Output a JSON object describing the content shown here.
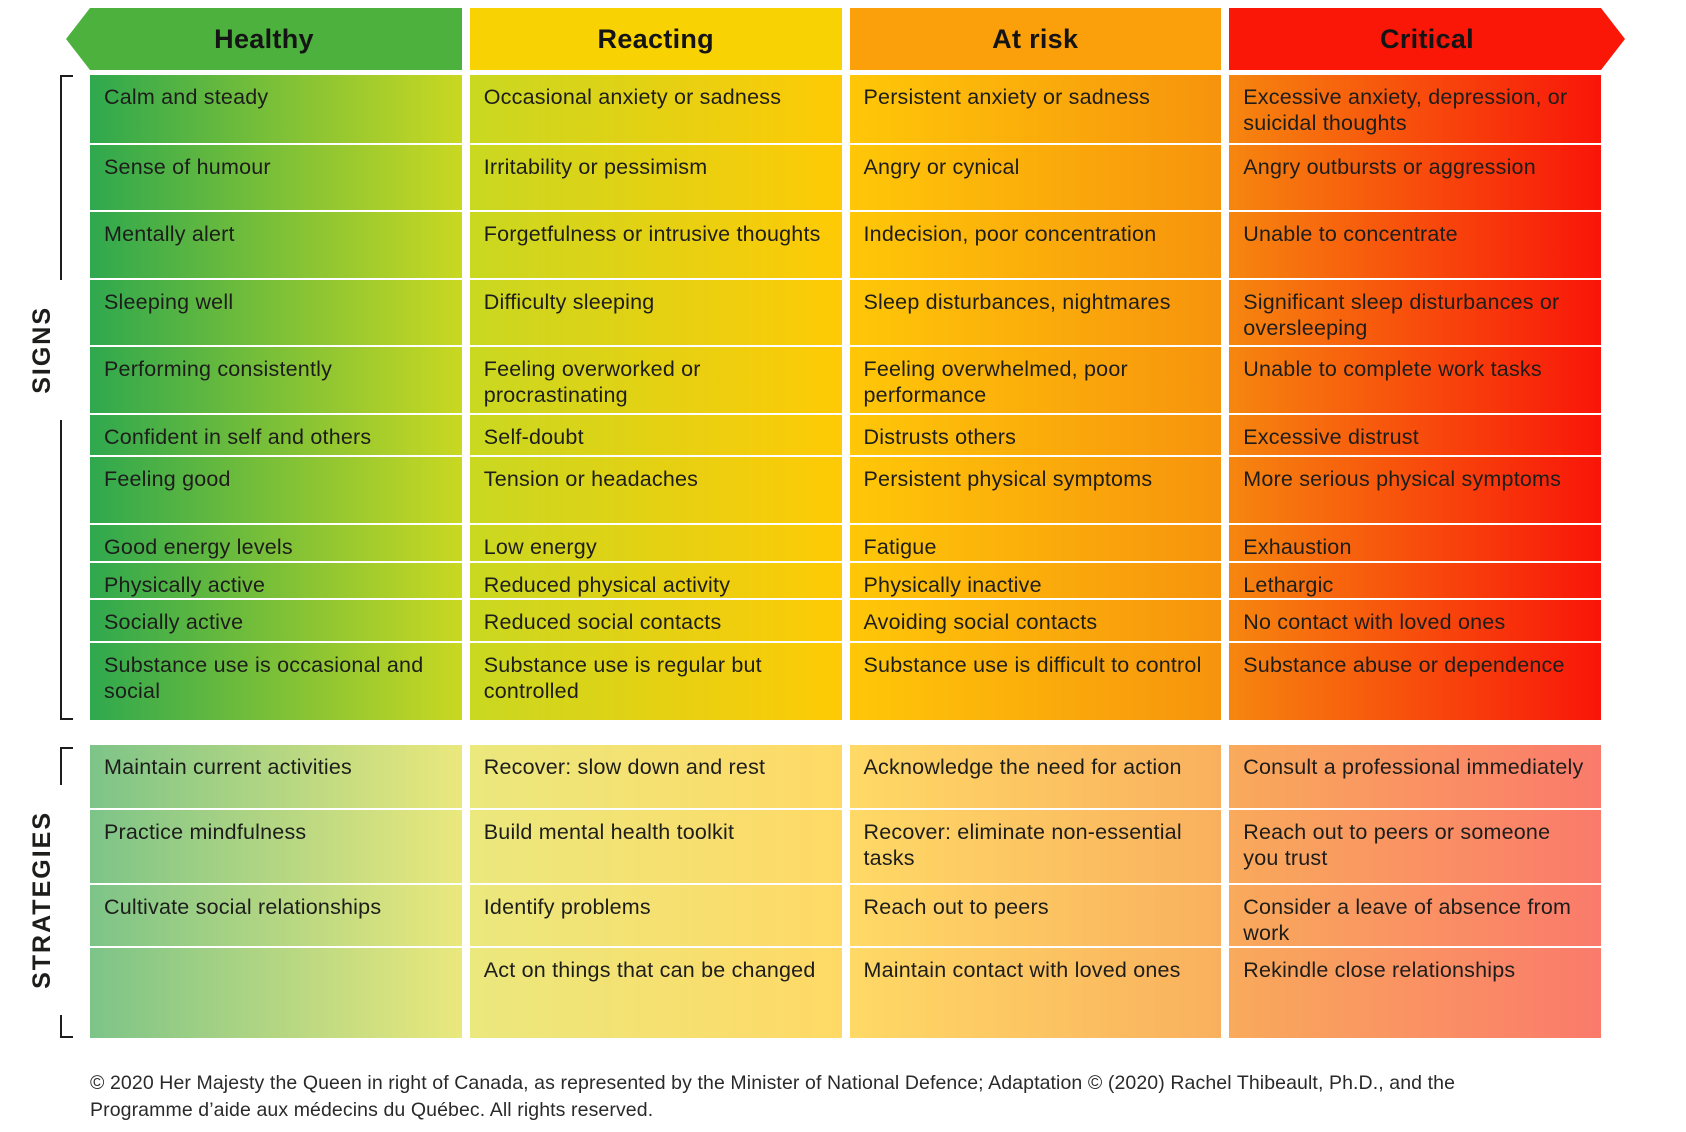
{
  "header": {
    "columns": [
      {
        "label": "Healthy"
      },
      {
        "label": "Reacting"
      },
      {
        "label": "At risk"
      },
      {
        "label": "Critical"
      }
    ]
  },
  "signs": {
    "label": "SIGNS",
    "columns": [
      {
        "name": "healthy",
        "rows": [
          "Calm and steady",
          "Sense of humour",
          "Mentally alert",
          "Sleeping well",
          "Performing consistently",
          "Confident in self and others",
          "Feeling good",
          "Good energy levels",
          "Physically active",
          "Socially active",
          "Substance use is occasional and social"
        ]
      },
      {
        "name": "reacting",
        "rows": [
          "Occasional anxiety or sadness",
          "Irritability or pessimism",
          "Forgetfulness or intrusive thoughts",
          "Difficulty sleeping",
          "Feeling overworked or procrastinating",
          "Self-doubt",
          "Tension or headaches",
          "Low energy",
          "Reduced physical activity",
          "Reduced social contacts",
          "Substance use is regular but controlled"
        ]
      },
      {
        "name": "at-risk",
        "rows": [
          "Persistent anxiety or sadness",
          "Angry or cynical",
          "Indecision, poor concentration",
          "Sleep disturbances, nightmares",
          "Feeling overwhelmed, poor performance",
          "Distrusts others",
          "Persistent physical symptoms",
          "Fatigue",
          "Physically inactive",
          "Avoiding social contacts",
          "Substance use is difficult to control"
        ]
      },
      {
        "name": "critical",
        "rows": [
          "Excessive anxiety, depression, or suicidal thoughts",
          "Angry outbursts or aggression",
          "Unable to concentrate",
          "Significant sleep disturbances or oversleeping",
          "Unable to complete work tasks",
          "Excessive distrust",
          "More serious physical symptoms",
          "Exhaustion",
          "Lethargic",
          "No contact with loved ones",
          "Substance abuse or dependence"
        ]
      }
    ]
  },
  "strategies": {
    "label": "STRATEGIES",
    "columns": [
      {
        "name": "healthy",
        "rows": [
          "Maintain current activities",
          "Practice mindfulness",
          "Cultivate social relationships",
          ""
        ]
      },
      {
        "name": "reacting",
        "rows": [
          "Recover: slow down and rest",
          "Build mental health toolkit",
          "Identify problems",
          "Act on things that can be changed"
        ]
      },
      {
        "name": "at-risk",
        "rows": [
          "Acknowledge the need for action",
          "Recover: eliminate non-essential tasks",
          "Reach out to peers",
          "Maintain contact with loved ones"
        ]
      },
      {
        "name": "critical",
        "rows": [
          "Consult a professional immediately",
          "Reach out to peers or someone you trust",
          "Consider a leave of absence from work",
          "Rekindle close relationships"
        ]
      }
    ]
  },
  "footer": {
    "copyright": "© 2020 Her Majesty the Queen in right of Canada, as represented by the Minister of National Defence; Adaptation © (2020) Rachel Thibeault, Ph.D., and the Programme d’aide aux médecins du Québec. All rights reserved."
  },
  "colors": {
    "header": {
      "healthy": "#4db13e",
      "reacting": "#f9d204",
      "at_risk": "#fba00b",
      "critical": "#fb1708"
    },
    "signs_gradients": {
      "healthy": [
        "#2fa84e",
        "#c9d821"
      ],
      "reacting": [
        "#c9d821",
        "#ffca05"
      ],
      "at_risk": [
        "#ffc708",
        "#f7930d"
      ],
      "critical": [
        "#f6860f",
        "#f91509"
      ]
    },
    "strategies_gradients": {
      "healthy": [
        "#7dc488",
        "#eae87d"
      ],
      "reacting": [
        "#ebe87d",
        "#ffd966"
      ],
      "at_risk": [
        "#ffd966",
        "#f9b05e"
      ],
      "critical": [
        "#f9aa5b",
        "#fa7a6b"
      ]
    },
    "text": "#1d1d1b",
    "separator": "#ffffff"
  }
}
